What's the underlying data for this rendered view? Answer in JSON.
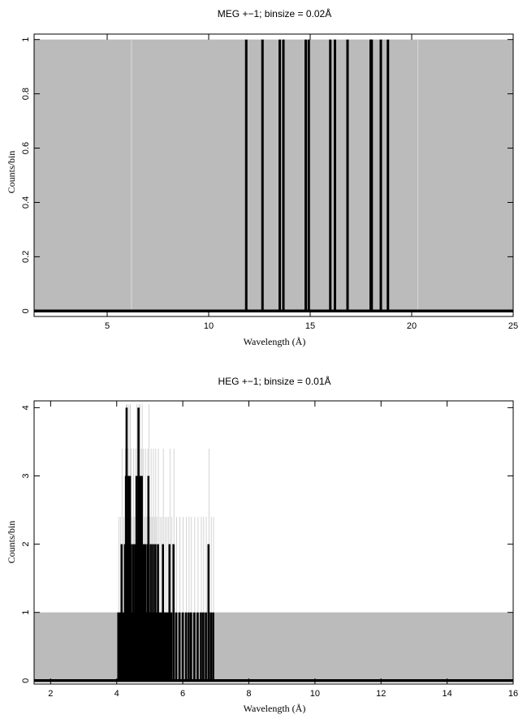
{
  "chart_data": [
    {
      "type": "line",
      "title": "MEG +−1; binsize = 0.02Å",
      "xlabel": "Wavelength (Å)",
      "ylabel": "Counts/bin",
      "xlim": [
        1.4,
        25
      ],
      "ylim": [
        -0.02,
        1.02
      ],
      "xticks": [
        5,
        10,
        15,
        20,
        25
      ],
      "yticks": [
        0,
        0.2,
        0.4,
        0.6,
        0.8,
        1
      ],
      "ytick_labels": [
        "0",
        "0.2",
        "0.4",
        "0.6",
        "0.8",
        "1"
      ],
      "grid": false,
      "background_color": "#bbbbbb",
      "line_color": "#000000",
      "spikes": [
        {
          "x": 11.85,
          "y": 1
        },
        {
          "x": 12.65,
          "y": 1
        },
        {
          "x": 13.5,
          "y": 1
        },
        {
          "x": 13.68,
          "y": 1
        },
        {
          "x": 14.78,
          "y": 1
        },
        {
          "x": 14.93,
          "y": 1
        },
        {
          "x": 15.99,
          "y": 1
        },
        {
          "x": 16.22,
          "y": 1
        },
        {
          "x": 16.84,
          "y": 1
        },
        {
          "x": 17.98,
          "y": 1
        },
        {
          "x": 18.03,
          "y": 1
        },
        {
          "x": 18.48,
          "y": 1
        },
        {
          "x": 18.83,
          "y": 1
        }
      ]
    },
    {
      "type": "line",
      "title": "HEG +−1; binsize = 0.01Å",
      "xlabel": "Wavelength (Å)",
      "ylabel": "Counts/bin",
      "xlim": [
        1.5,
        16
      ],
      "ylim": [
        -0.05,
        4.1
      ],
      "xticks": [
        2,
        4,
        6,
        8,
        10,
        12,
        14,
        16
      ],
      "yticks": [
        0,
        1,
        2,
        3,
        4
      ],
      "ytick_labels": [
        "0",
        "1",
        "2",
        "3",
        "4"
      ],
      "grid": false,
      "background_color": "#bbbbbb",
      "background_level": 1,
      "line_color": "#000000",
      "spikes": [
        {
          "x": 4.05,
          "y": 1
        },
        {
          "x": 4.1,
          "y": 1
        },
        {
          "x": 4.15,
          "y": 2
        },
        {
          "x": 4.2,
          "y": 1
        },
        {
          "x": 4.25,
          "y": 2
        },
        {
          "x": 4.28,
          "y": 3
        },
        {
          "x": 4.3,
          "y": 4
        },
        {
          "x": 4.33,
          "y": 2
        },
        {
          "x": 4.36,
          "y": 3
        },
        {
          "x": 4.4,
          "y": 3
        },
        {
          "x": 4.43,
          "y": 2
        },
        {
          "x": 4.46,
          "y": 1
        },
        {
          "x": 4.5,
          "y": 2
        },
        {
          "x": 4.53,
          "y": 1
        },
        {
          "x": 4.56,
          "y": 2
        },
        {
          "x": 4.6,
          "y": 3
        },
        {
          "x": 4.63,
          "y": 2
        },
        {
          "x": 4.66,
          "y": 4
        },
        {
          "x": 4.7,
          "y": 3
        },
        {
          "x": 4.73,
          "y": 2
        },
        {
          "x": 4.76,
          "y": 3
        },
        {
          "x": 4.8,
          "y": 2
        },
        {
          "x": 4.83,
          "y": 1
        },
        {
          "x": 4.86,
          "y": 2
        },
        {
          "x": 4.9,
          "y": 1
        },
        {
          "x": 4.93,
          "y": 2
        },
        {
          "x": 4.96,
          "y": 3
        },
        {
          "x": 5.0,
          "y": 1
        },
        {
          "x": 5.03,
          "y": 2
        },
        {
          "x": 5.06,
          "y": 1
        },
        {
          "x": 5.1,
          "y": 2
        },
        {
          "x": 5.13,
          "y": 1
        },
        {
          "x": 5.17,
          "y": 2
        },
        {
          "x": 5.2,
          "y": 1
        },
        {
          "x": 5.25,
          "y": 2
        },
        {
          "x": 5.3,
          "y": 1
        },
        {
          "x": 5.35,
          "y": 1
        },
        {
          "x": 5.4,
          "y": 2
        },
        {
          "x": 5.45,
          "y": 1
        },
        {
          "x": 5.5,
          "y": 1
        },
        {
          "x": 5.55,
          "y": 1
        },
        {
          "x": 5.6,
          "y": 2
        },
        {
          "x": 5.65,
          "y": 1
        },
        {
          "x": 5.72,
          "y": 2
        },
        {
          "x": 5.8,
          "y": 1
        },
        {
          "x": 5.9,
          "y": 1
        },
        {
          "x": 6.0,
          "y": 1
        },
        {
          "x": 6.1,
          "y": 1
        },
        {
          "x": 6.18,
          "y": 1
        },
        {
          "x": 6.25,
          "y": 1
        },
        {
          "x": 6.35,
          "y": 1
        },
        {
          "x": 6.45,
          "y": 1
        },
        {
          "x": 6.55,
          "y": 1
        },
        {
          "x": 6.62,
          "y": 1
        },
        {
          "x": 6.7,
          "y": 1
        },
        {
          "x": 6.78,
          "y": 2
        },
        {
          "x": 6.85,
          "y": 1
        },
        {
          "x": 6.92,
          "y": 1
        }
      ]
    }
  ]
}
